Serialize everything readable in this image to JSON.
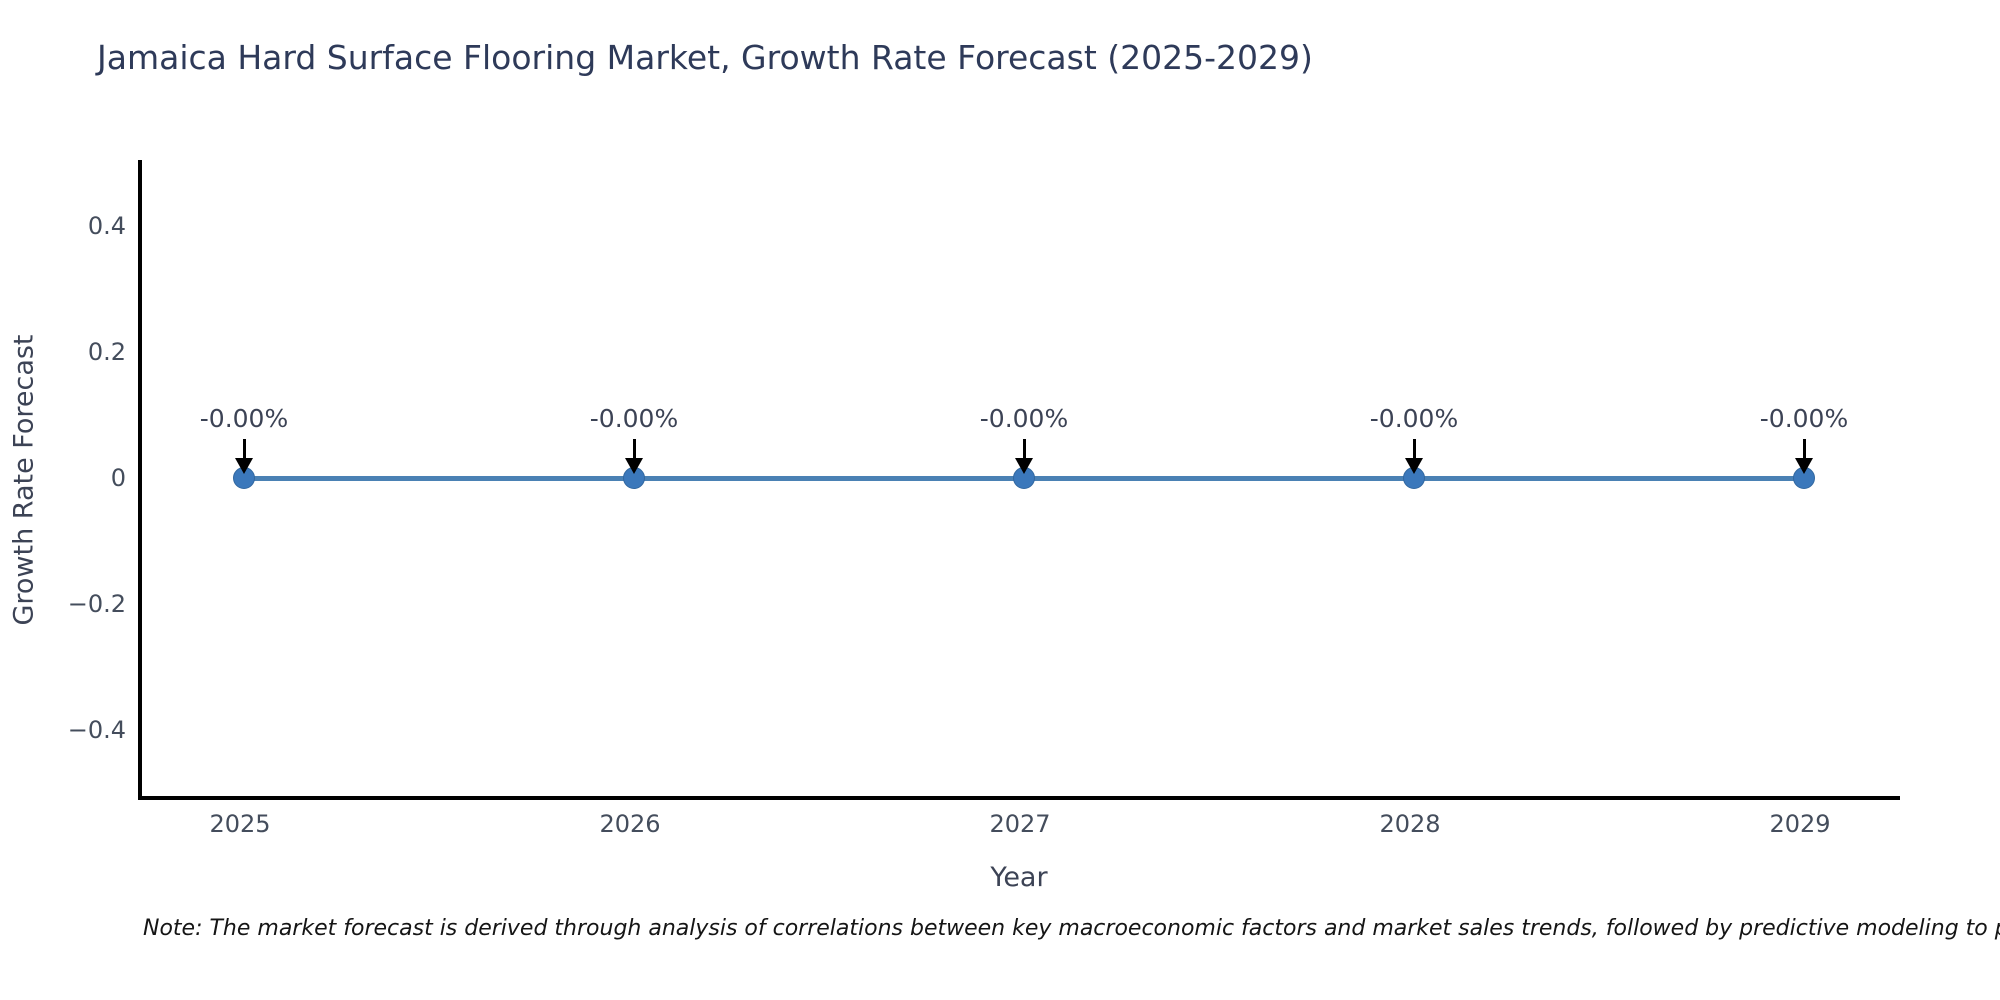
{
  "note": "Note: The market forecast is derived through analysis of correlations between key macroeconomic factors and market sales trends, followed by predictive modeling to project future sales",
  "chart_data": {
    "type": "line",
    "title": "Jamaica Hard Surface Flooring Market, Growth Rate Forecast (2025-2029)",
    "xlabel": "Year",
    "ylabel": "Growth Rate Forecast",
    "x": [
      "2025",
      "2026",
      "2027",
      "2028",
      "2029"
    ],
    "series": [
      {
        "name": "Growth Rate Forecast",
        "values": [
          0,
          0,
          0,
          0,
          0
        ]
      }
    ],
    "point_labels": [
      "-0.00%",
      "-0.00%",
      "-0.00%",
      "-0.00%",
      "-0.00%"
    ],
    "yticks": [
      {
        "label": "0.4",
        "value": 0.4
      },
      {
        "label": "0.2",
        "value": 0.2
      },
      {
        "label": "0",
        "value": 0
      },
      {
        "label": "−0.2",
        "value": -0.2
      },
      {
        "label": "−0.4",
        "value": -0.4
      }
    ],
    "ylim": [
      -0.508,
      0.508
    ],
    "grid": false,
    "legend_position": "none",
    "annotation_arrows": "down-to-point",
    "colors": {
      "line": "#4a81b4",
      "marker": "#3b78bb",
      "marker_edge": "#31679f",
      "arrow": "#000000",
      "axis": "#000000",
      "title_text": "#2e3a59",
      "tick_text": "#444d5c",
      "note_text": "#151515"
    }
  }
}
